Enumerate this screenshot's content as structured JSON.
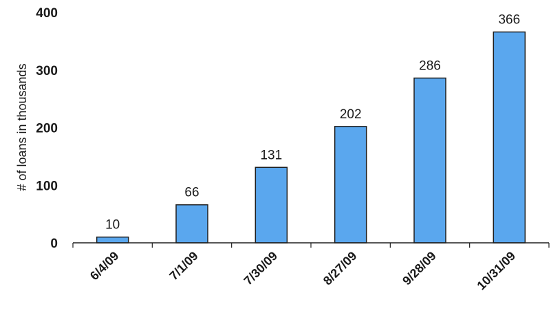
{
  "chart_data": {
    "type": "bar",
    "categories": [
      "6/4/09",
      "7/1/09",
      "7/30/09",
      "8/27/09",
      "9/28/09",
      "10/31/09"
    ],
    "values": [
      10,
      66,
      131,
      202,
      286,
      366
    ],
    "data_labels": [
      "10",
      "66",
      "131",
      "202",
      "286",
      "366"
    ],
    "title": "",
    "xlabel": "",
    "ylabel": "# of loans in thousands",
    "ylim": [
      0,
      400
    ],
    "y_ticks": [
      0,
      100,
      200,
      300,
      400
    ],
    "grid": false,
    "legend": "none",
    "bar_color": "#5aa7ee",
    "bar_edge_color": "#1f1f1f"
  }
}
